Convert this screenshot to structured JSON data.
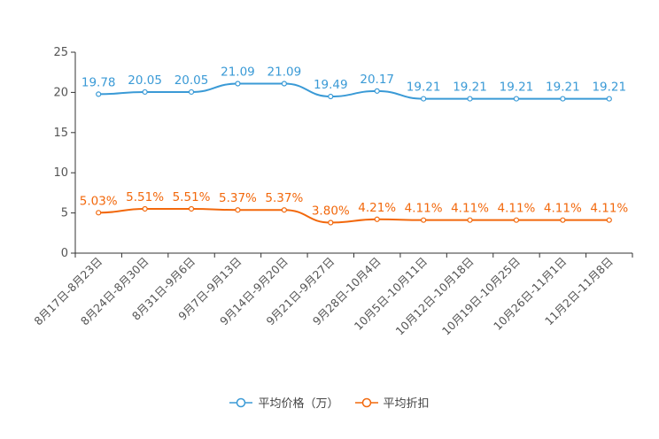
{
  "chart_data": {
    "type": "line",
    "categories": [
      "8月17日-8月23日",
      "8月24日-8月30日",
      "8月31日-9月6日",
      "9月7日-9月13日",
      "9月14日-9月20日",
      "9月21日-9月27日",
      "9月28日-10月4日",
      "10月5日-10月11日",
      "10月12日-10月18日",
      "10月19日-10月25日",
      "10月26日-11月1日",
      "11月2日-11月8日"
    ],
    "series": [
      {
        "name": "平均价格（万）",
        "color": "#3a9ad6",
        "values": [
          19.78,
          20.05,
          20.05,
          21.09,
          21.09,
          19.49,
          20.17,
          19.21,
          19.21,
          19.21,
          19.21,
          19.21
        ],
        "labels": [
          "19.78",
          "20.05",
          "20.05",
          "21.09",
          "21.09",
          "19.49",
          "20.17",
          "19.21",
          "19.21",
          "19.21",
          "19.21",
          "19.21"
        ]
      },
      {
        "name": "平均折扣",
        "color": "#f2680c",
        "values": [
          5.03,
          5.51,
          5.51,
          5.37,
          5.37,
          3.8,
          4.21,
          4.11,
          4.11,
          4.11,
          4.11,
          4.11
        ],
        "labels": [
          "5.03%",
          "5.51%",
          "5.51%",
          "5.37%",
          "5.37%",
          "3.80%",
          "4.21%",
          "4.11%",
          "4.11%",
          "4.11%",
          "4.11%",
          "4.11%"
        ]
      }
    ],
    "ylim": [
      0,
      25
    ],
    "yticks": [
      "0",
      "5",
      "10",
      "15",
      "20",
      "25"
    ],
    "grid": false,
    "legend_position": "bottom-center"
  }
}
